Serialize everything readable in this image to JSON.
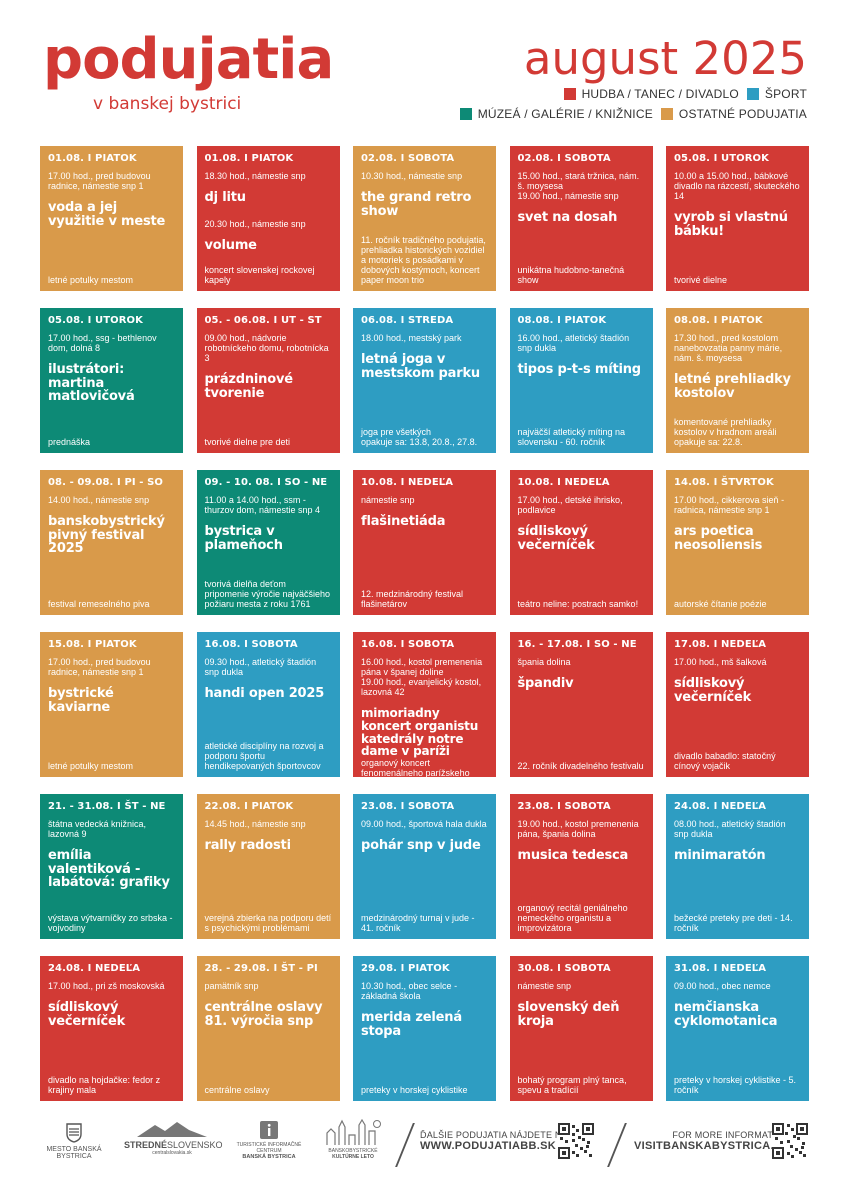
{
  "header": {
    "title": "podujatia",
    "subtitle": "v banskej bystrici",
    "month": "august 2025",
    "legend": [
      {
        "label": "HUDBA / TANEC / DIVADLO",
        "color": "#d23a35"
      },
      {
        "label": "ŠPORT",
        "color": "#2e9dc2"
      },
      {
        "label": "MÚZEÁ / GALÉRIE / KNIŽNICE",
        "color": "#0d8a76"
      },
      {
        "label": "OSTATNÉ PODUJATIA",
        "color": "#d99a4a"
      }
    ]
  },
  "events": [
    {
      "category": "other",
      "date": "01.08. I PIATOK",
      "info": "17.00 hod., pred budovou radnice, námestie snp 1",
      "title": "voda a jej využitie v meste",
      "note": "letné potulky mestom"
    },
    {
      "category": "music",
      "date": "01.08. I PIATOK",
      "info": "18.30 hod., námestie snp",
      "title": "dj litu",
      "info2": "20.30 hod., námestie snp",
      "title2": "volume",
      "note": "koncert slovenskej rockovej kapely"
    },
    {
      "category": "other",
      "date": "02.08. I SOBOTA",
      "info": "10.30 hod., námestie snp",
      "title": "the grand retro show",
      "note": "11. ročník tradičného podujatia, prehliadka historických vozidiel a motoriek s posádkami v dobových kostýmoch, koncert paper moon trio"
    },
    {
      "category": "music",
      "date": "02.08. I SOBOTA",
      "info": "15.00 hod., stará tržnica, nám. š. moysesa\n19.00 hod., námestie snp",
      "title": "svet na dosah",
      "note": "unikátna hudobno-tanečná show"
    },
    {
      "category": "music",
      "date": "05.08. I UTOROK",
      "info": "10.00 a 15.00 hod., bábkové divadlo na rázcestí, skuteckého 14",
      "title": "vyrob si vlastnú bábku!",
      "note": "tvorivé dielne"
    },
    {
      "category": "museum",
      "date": "05.08. I UTOROK",
      "info": "17.00 hod., ssg - bethlenov dom, dolná 8",
      "title": "ilustrátori: martina matlovičová",
      "note": "prednáška"
    },
    {
      "category": "music",
      "date": "05. - 06.08. I UT - ST",
      "info": "09.00 hod., nádvorie robotníckeho domu, robotnícka 3",
      "title": "prázdninové tvorenie",
      "note": "tvorivé dielne pre deti"
    },
    {
      "category": "sport",
      "date": "06.08. I STREDA",
      "info": "18.00 hod., mestský park",
      "title": "letná joga v mestskom parku",
      "note": "joga pre všetkých\nopakuje sa: 13.8, 20.8., 27.8."
    },
    {
      "category": "sport",
      "date": "08.08. I PIATOK",
      "info": "16.00 hod., atletický štadión snp dukla",
      "title": "tipos p-t-s míting",
      "note": "najväčší atletický míting na slovensku - 60. ročník"
    },
    {
      "category": "other",
      "date": "08.08. I PIATOK",
      "info": "17.30 hod., pred kostolom nanebovzatia panny márie, nám. š. moysesa",
      "title": "letné prehliadky kostolov",
      "note": "komentované prehliadky kostolov v hradnom areáli\nopakuje sa: 22.8."
    },
    {
      "category": "other",
      "date": "08. - 09.08. I PI - SO",
      "info": "14.00 hod., námestie snp",
      "title": "banskobystrický pivný festival 2025",
      "note": "festival remeselného piva"
    },
    {
      "category": "museum",
      "date": "09. - 10. 08. I SO - NE",
      "info": "11.00 a 14.00 hod., ssm - thurzov dom, námestie snp 4",
      "title": "bystrica v plameňoch",
      "note": "tvorivá dielňa deťom pripomenie výročie najväčšieho požiaru mesta z roku 1761"
    },
    {
      "category": "music",
      "date": "10.08. I NEDEĽA",
      "info": "námestie snp",
      "title": "flašinetiáda",
      "note": "12. medzinárodný festival flašinetárov"
    },
    {
      "category": "music",
      "date": "10.08. I NEDEĽA",
      "info": "17.00 hod., detské ihrisko, podlavice",
      "title": "sídliskový večerníček",
      "note": "teátro neline: postrach samko!"
    },
    {
      "category": "other",
      "date": "14.08. I ŠTVRTOK",
      "info": "17.00 hod., cikkerova sieň - radnica, námestie snp 1",
      "title": "ars poetica neosoliensis",
      "note": "autorské čítanie poézie"
    },
    {
      "category": "other",
      "date": "15.08. I PIATOK",
      "info": "17.00 hod., pred budovou radnice, námestie snp 1",
      "title": "bystrické kaviarne",
      "note": "letné potulky mestom"
    },
    {
      "category": "sport",
      "date": "16.08. I SOBOTA",
      "info": "09.30 hod., atletický štadión snp dukla",
      "title": "handi open 2025",
      "note": "atletické disciplíny na rozvoj a podporu športu hendikepovaných športovcov"
    },
    {
      "category": "music",
      "date": "16.08. I SOBOTA",
      "info": "16.00 hod., kostol premenenia pána v španej doline\n19.00 hod., evanjelický kostol, lazovná 42",
      "title": "mimoriadny koncert organistu katedrály notre dame v paríži",
      "note": "organový koncert fenomenálneho parížskeho virtuóza",
      "small": true
    },
    {
      "category": "music",
      "date": "16. - 17.08. I SO - NE",
      "info": "špania dolina",
      "title": "špandiv",
      "note": "22. ročník divadelného festivalu"
    },
    {
      "category": "music",
      "date": "17.08. I NEDEĽA",
      "info": "17.00 hod., mš šalková",
      "title": "sídliskový večerníček",
      "note": "divadlo babadlo: statočný cínový vojačik"
    },
    {
      "category": "museum",
      "date": "21. - 31.08. I ŠT - NE",
      "info": "štátna vedecká knižnica, lazovná 9",
      "title": "emília valentiková - labátová: grafiky",
      "note": "výstava výtvarníčky zo srbska - vojvodiny"
    },
    {
      "category": "other",
      "date": "22.08. I PIATOK",
      "info": "14.45 hod., námestie snp",
      "title": "rally radosti",
      "note": "verejná zbierka na podporu detí s psychickými problémami"
    },
    {
      "category": "sport",
      "date": "23.08. I SOBOTA",
      "info": "09.00 hod., športová hala dukla",
      "title": "pohár snp v jude",
      "note": "medzinárodný turnaj v jude - 41. ročník"
    },
    {
      "category": "music",
      "date": "23.08. I SOBOTA",
      "info": "19.00 hod., kostol premenenia pána, špania dolina",
      "title": "musica tedesca",
      "note": "organový recitál geniálneho nemeckého organistu a improvizátora"
    },
    {
      "category": "sport",
      "date": "24.08. I NEDEĽA",
      "info": "08.00 hod., atletický štadión snp dukla",
      "title": "minimaratón",
      "note": "bežecké preteky pre deti - 14. ročník"
    },
    {
      "category": "music",
      "date": "24.08. I NEDEĽA",
      "info": "17.00 hod., pri zš moskovská",
      "title": "sídliskový večerníček",
      "note": "divadlo na hojdačke: fedor z krajiny mala"
    },
    {
      "category": "other",
      "date": "28. - 29.08. I ŠT - PI",
      "info": "pamätník snp",
      "title": "centrálne oslavy 81. výročia snp",
      "note": "centrálne oslavy"
    },
    {
      "category": "sport",
      "date": "29.08. I PIATOK",
      "info": "10.30 hod., obec selce - základná škola",
      "title": "merida zelená stopa",
      "note": "preteky v horskej cyklistike"
    },
    {
      "category": "music",
      "date": "30.08. I SOBOTA",
      "info": "námestie snp",
      "title": "slovenský deň kroja",
      "note": "bohatý program plný tanca, spevu a tradícií"
    },
    {
      "category": "sport",
      "date": "31.08. I NEDEĽA",
      "info": "09.00 hod., obec nemce",
      "title": "nemčianska cyklomotanica",
      "note": "preteky v horskej cyklistike - 5. ročník"
    }
  ],
  "footer": {
    "logos": {
      "city": "MESTO BANSKÁ BYSTRICA",
      "region_a": "STREDNÉ",
      "region_b": "SLOVENSKO",
      "region_sub": "centralslovakia.sk",
      "tic_a": "TURISTICKÉ INFORMAČNÉ CENTRUM",
      "tic_b": "BANSKÁ BYSTRICA",
      "leto_a": "BANSKOBYSTRICKÉ",
      "leto_b": "KULTÚRNE LETO"
    },
    "web1_label": "ĎALŠIE PODUJATIA NÁJDETE NA",
    "web1_url": "WWW.PODUJATIABB.SK",
    "web2_label": "FOR MORE INFORMATION",
    "web2_url": "VISITBANSKABYSTRICA.SK"
  }
}
